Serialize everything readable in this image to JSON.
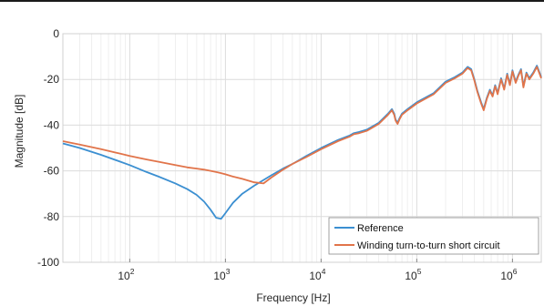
{
  "chart_data": {
    "type": "line",
    "title": "",
    "xlabel": "Frequency [Hz]",
    "ylabel": "Magnitude [dB]",
    "x_scale": "log",
    "xlim": [
      20,
      2000000
    ],
    "ylim": [
      -100,
      0
    ],
    "grid": true,
    "legend_position": "bottom-right",
    "x_ticks": [
      {
        "base": "10",
        "exp": "2",
        "value": 100
      },
      {
        "base": "10",
        "exp": "3",
        "value": 1000
      },
      {
        "base": "10",
        "exp": "4",
        "value": 10000
      },
      {
        "base": "10",
        "exp": "5",
        "value": 100000
      },
      {
        "base": "10",
        "exp": "6",
        "value": 1000000
      }
    ],
    "y_ticks": [
      {
        "label": "0",
        "value": 0
      },
      {
        "label": "-20",
        "value": -20
      },
      {
        "label": "-40",
        "value": -40
      },
      {
        "label": "-60",
        "value": -60
      },
      {
        "label": "-80",
        "value": -80
      },
      {
        "label": "-100",
        "value": -100
      }
    ],
    "series": [
      {
        "name": "Reference",
        "color": "#3b8fd1",
        "x": [
          20,
          30,
          50,
          80,
          100,
          150,
          200,
          300,
          400,
          500,
          600,
          700,
          800,
          900,
          1000,
          1200,
          1500,
          2000,
          3000,
          4000,
          5000,
          7000,
          10000,
          15000,
          20000,
          22000,
          25000,
          30000,
          40000,
          50000,
          55000,
          58000,
          60000,
          63000,
          66000,
          70000,
          80000,
          100000,
          150000,
          200000,
          250000,
          300000,
          340000,
          370000,
          400000,
          430000,
          470000,
          500000,
          540000,
          580000,
          620000,
          660000,
          700000,
          760000,
          820000,
          880000,
          940000,
          1000000,
          1080000,
          1150000,
          1230000,
          1300000,
          1400000,
          1500000,
          1650000,
          1800000,
          2000000
        ],
        "y": [
          -48,
          -50,
          -53,
          -56,
          -57.5,
          -60.5,
          -62.5,
          -65.5,
          -68,
          -70.5,
          -73.5,
          -77,
          -80.5,
          -81,
          -78.5,
          -74,
          -70,
          -66.5,
          -62,
          -59,
          -57,
          -53.5,
          -50,
          -46.5,
          -44.5,
          -43.5,
          -43,
          -42,
          -39,
          -35,
          -33,
          -35,
          -37.5,
          -39,
          -37,
          -35,
          -33,
          -30,
          -26,
          -21,
          -19,
          -17,
          -14.5,
          -15.5,
          -20,
          -25,
          -30,
          -33,
          -28,
          -24.5,
          -27,
          -22.5,
          -26,
          -19.5,
          -24,
          -17.5,
          -22,
          -16,
          -21,
          -18,
          -15.5,
          -23,
          -17,
          -19.5,
          -17,
          -14,
          -19
        ]
      },
      {
        "name": "Winding turn-to-turn short circuit",
        "color": "#e1744a",
        "x": [
          20,
          30,
          50,
          80,
          100,
          150,
          200,
          300,
          400,
          500,
          600,
          700,
          800,
          900,
          1000,
          1200,
          1500,
          2000,
          2500,
          3000,
          4000,
          5000,
          7000,
          10000,
          15000,
          20000,
          22000,
          25000,
          30000,
          40000,
          50000,
          55000,
          58000,
          60000,
          63000,
          66000,
          70000,
          80000,
          100000,
          150000,
          200000,
          250000,
          300000,
          340000,
          370000,
          400000,
          430000,
          470000,
          500000,
          540000,
          580000,
          620000,
          660000,
          700000,
          760000,
          820000,
          880000,
          940000,
          1000000,
          1080000,
          1150000,
          1230000,
          1300000,
          1400000,
          1500000,
          1650000,
          1800000,
          2000000
        ],
        "y": [
          -47,
          -48.5,
          -50.5,
          -52.5,
          -53.5,
          -55,
          -56,
          -57.5,
          -58.5,
          -59,
          -59.5,
          -60,
          -60.5,
          -61,
          -61.5,
          -62.5,
          -63.5,
          -65,
          -65.5,
          -63,
          -59.5,
          -57,
          -54,
          -50.5,
          -47,
          -45,
          -44,
          -43.5,
          -42.5,
          -39.5,
          -35.5,
          -33.5,
          -35.5,
          -38,
          -39.5,
          -37.5,
          -35.5,
          -33.5,
          -30.5,
          -26.5,
          -21.5,
          -19.5,
          -17.5,
          -15,
          -16,
          -20.5,
          -25.5,
          -30.5,
          -33.5,
          -28.5,
          -25,
          -27.5,
          -23,
          -26.5,
          -20,
          -24.5,
          -18,
          -22.5,
          -16.5,
          -21.5,
          -18.5,
          -16,
          -23.5,
          -17.5,
          -20,
          -17.5,
          -14.5,
          -19.5
        ]
      }
    ]
  }
}
